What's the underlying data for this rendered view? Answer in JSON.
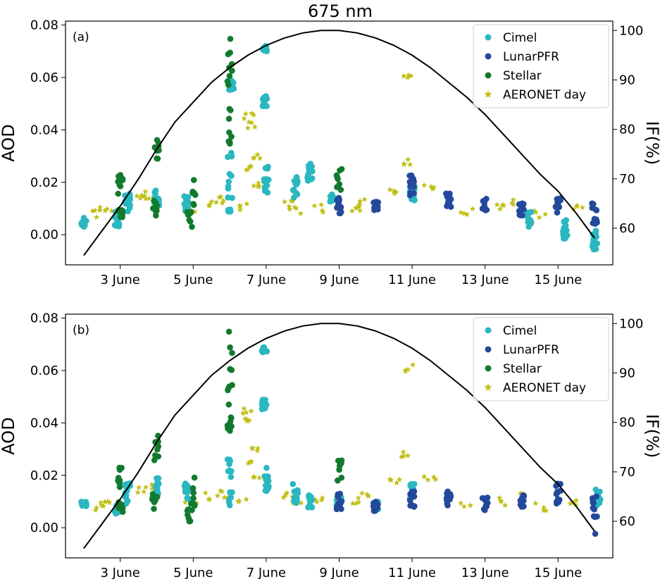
{
  "figure": {
    "title": "675 nm"
  },
  "colors": {
    "cimel": "#2ab7c0",
    "lunar": "#23499a",
    "stellar": "#127a2e",
    "aeronet": "#bfbf14",
    "if_line": "#000000"
  },
  "chart_data": [
    {
      "panel_label": "(a)",
      "type": "scatter",
      "title": "675 nm",
      "ylabel": "AOD",
      "y2label": "IF(%)",
      "ylim": [
        -0.0115,
        0.0815
      ],
      "y2lim": [
        52.6,
        101.9
      ],
      "xlim": [
        1.5,
        16.5
      ],
      "yticks": [
        "0.00",
        "0.02",
        "0.04",
        "0.06",
        "0.08"
      ],
      "y2ticks": [
        "60",
        "70",
        "80",
        "90",
        "100"
      ],
      "xticks": [
        "3 June",
        "5 June",
        "7 June",
        "9 June",
        "11 June",
        "13 June",
        "15 June"
      ],
      "legend": [
        "Cimel",
        "LunarPFR",
        "Stellar",
        "AERONET day"
      ],
      "legend_position": "top-right",
      "if_curve": {
        "x": [
          2.0,
          2.5,
          3.0,
          3.5,
          4.0,
          4.5,
          5.0,
          5.5,
          6.0,
          6.5,
          7.0,
          7.5,
          8.0,
          8.5,
          9.0,
          9.5,
          10.0,
          10.5,
          11.0,
          11.5,
          12.0,
          12.5,
          13.0,
          13.5,
          14.0,
          14.5,
          15.0,
          15.5,
          16.0
        ],
        "y": [
          54.5,
          59.5,
          64.5,
          70.0,
          76.0,
          81.5,
          85.5,
          89.5,
          92.5,
          95.0,
          97.0,
          98.5,
          99.5,
          100.0,
          100.0,
          99.5,
          98.5,
          97.0,
          95.0,
          92.5,
          89.5,
          86.5,
          83.0,
          79.0,
          75.0,
          71.0,
          67.5,
          63.0,
          58.0
        ]
      },
      "cimel": [
        {
          "x": 2.0,
          "y": 0.005,
          "spread": 0.002
        },
        {
          "x": 2.9,
          "y": 0.006,
          "spread": 0.003
        },
        {
          "x": 3.2,
          "y": 0.012,
          "spread": 0.004
        },
        {
          "x": 4.0,
          "y": 0.014,
          "spread": 0.003
        },
        {
          "x": 4.8,
          "y": 0.012,
          "spread": 0.003
        },
        {
          "x": 6.0,
          "y": 0.02,
          "spread": 0.012
        },
        {
          "x": 6.05,
          "y": 0.057,
          "spread": 0.002
        },
        {
          "x": 6.95,
          "y": 0.071,
          "spread": 0.001
        },
        {
          "x": 6.95,
          "y": 0.051,
          "spread": 0.002
        },
        {
          "x": 7.0,
          "y": 0.022,
          "spread": 0.006
        },
        {
          "x": 7.8,
          "y": 0.018,
          "spread": 0.004
        },
        {
          "x": 8.2,
          "y": 0.024,
          "spread": 0.004
        },
        {
          "x": 8.8,
          "y": 0.014,
          "spread": 0.002
        },
        {
          "x": 11.0,
          "y": 0.016,
          "spread": 0.003
        },
        {
          "x": 14.2,
          "y": 0.006,
          "spread": 0.003
        },
        {
          "x": 15.2,
          "y": 0.002,
          "spread": 0.004
        },
        {
          "x": 16.0,
          "y": -0.002,
          "spread": 0.004
        }
      ],
      "lunar": [
        {
          "x": 9.0,
          "y": 0.011,
          "spread": 0.003
        },
        {
          "x": 10.0,
          "y": 0.011,
          "spread": 0.002
        },
        {
          "x": 11.0,
          "y": 0.019,
          "spread": 0.004
        },
        {
          "x": 12.0,
          "y": 0.013,
          "spread": 0.003
        },
        {
          "x": 13.0,
          "y": 0.012,
          "spread": 0.003
        },
        {
          "x": 14.0,
          "y": 0.01,
          "spread": 0.003
        },
        {
          "x": 15.0,
          "y": 0.012,
          "spread": 0.004
        },
        {
          "x": 16.0,
          "y": 0.008,
          "spread": 0.004
        }
      ],
      "stellar": [
        {
          "x": 3.0,
          "y": 0.019,
          "spread": 0.005
        },
        {
          "x": 3.0,
          "y": 0.008,
          "spread": 0.002
        },
        {
          "x": 4.0,
          "y": 0.031,
          "spread": 0.006
        },
        {
          "x": 3.95,
          "y": 0.01,
          "spread": 0.003
        },
        {
          "x": 5.0,
          "y": 0.015,
          "spread": 0.006
        },
        {
          "x": 4.9,
          "y": 0.006,
          "spread": 0.003
        },
        {
          "x": 6.0,
          "y": 0.062,
          "spread": 0.01
        },
        {
          "x": 6.0,
          "y": 0.042,
          "spread": 0.008
        },
        {
          "x": 6.05,
          "y": 0.075,
          "spread": 0.0005
        },
        {
          "x": 9.0,
          "y": 0.021,
          "spread": 0.005
        }
      ],
      "aeronet": [
        {
          "x": 2.4,
          "y": 0.008
        },
        {
          "x": 2.6,
          "y": 0.009
        },
        {
          "x": 3.6,
          "y": 0.014
        },
        {
          "x": 3.8,
          "y": 0.015
        },
        {
          "x": 4.95,
          "y": 0.01
        },
        {
          "x": 5.5,
          "y": 0.012
        },
        {
          "x": 5.8,
          "y": 0.013
        },
        {
          "x": 6.4,
          "y": 0.011
        },
        {
          "x": 6.5,
          "y": 0.025
        },
        {
          "x": 6.5,
          "y": 0.045
        },
        {
          "x": 6.6,
          "y": 0.042
        },
        {
          "x": 6.7,
          "y": 0.03
        },
        {
          "x": 6.8,
          "y": 0.019
        },
        {
          "x": 7.6,
          "y": 0.012
        },
        {
          "x": 7.8,
          "y": 0.009
        },
        {
          "x": 8.4,
          "y": 0.01
        },
        {
          "x": 9.4,
          "y": 0.01
        },
        {
          "x": 9.7,
          "y": 0.012
        },
        {
          "x": 10.5,
          "y": 0.017
        },
        {
          "x": 10.8,
          "y": 0.028
        },
        {
          "x": 10.85,
          "y": 0.061
        },
        {
          "x": 11.5,
          "y": 0.018
        },
        {
          "x": 12.5,
          "y": 0.009
        },
        {
          "x": 13.5,
          "y": 0.01
        },
        {
          "x": 13.9,
          "y": 0.012
        },
        {
          "x": 14.5,
          "y": 0.008
        },
        {
          "x": 15.5,
          "y": 0.01
        }
      ]
    },
    {
      "panel_label": "(b)",
      "type": "scatter",
      "title": "",
      "ylabel": "AOD",
      "y2label": "IF(%)",
      "ylim": [
        -0.0115,
        0.0815
      ],
      "y2lim": [
        52.6,
        101.9
      ],
      "xlim": [
        1.5,
        16.5
      ],
      "yticks": [
        "0.00",
        "0.02",
        "0.04",
        "0.06",
        "0.08"
      ],
      "y2ticks": [
        "60",
        "70",
        "80",
        "90",
        "100"
      ],
      "xticks": [
        "3 June",
        "5 June",
        "7 June",
        "9 June",
        "11 June",
        "13 June",
        "15 June"
      ],
      "legend": [
        "Cimel",
        "LunarPFR",
        "Stellar",
        "AERONET day"
      ],
      "legend_position": "top-right",
      "if_curve": {
        "x": [
          2.0,
          2.5,
          3.0,
          3.5,
          4.0,
          4.5,
          5.0,
          5.5,
          6.0,
          6.5,
          7.0,
          7.5,
          8.0,
          8.5,
          9.0,
          9.5,
          10.0,
          10.5,
          11.0,
          11.5,
          12.0,
          12.5,
          13.0,
          13.5,
          14.0,
          14.5,
          15.0,
          15.5,
          16.0
        ],
        "y": [
          54.5,
          59.5,
          64.5,
          70.0,
          76.0,
          81.5,
          85.5,
          89.5,
          92.5,
          95.0,
          97.0,
          98.5,
          99.5,
          100.0,
          100.0,
          99.5,
          98.5,
          97.0,
          95.0,
          92.5,
          89.5,
          86.5,
          83.0,
          79.0,
          75.0,
          71.0,
          67.5,
          63.0,
          58.0
        ]
      },
      "cimel": [
        {
          "x": 2.0,
          "y": 0.009,
          "spread": 0.001
        },
        {
          "x": 2.9,
          "y": 0.007,
          "spread": 0.002
        },
        {
          "x": 3.2,
          "y": 0.013,
          "spread": 0.004
        },
        {
          "x": 4.0,
          "y": 0.016,
          "spread": 0.003
        },
        {
          "x": 4.8,
          "y": 0.014,
          "spread": 0.003
        },
        {
          "x": 6.0,
          "y": 0.018,
          "spread": 0.01
        },
        {
          "x": 6.95,
          "y": 0.068,
          "spread": 0.001
        },
        {
          "x": 6.95,
          "y": 0.047,
          "spread": 0.002
        },
        {
          "x": 7.0,
          "y": 0.019,
          "spread": 0.005
        },
        {
          "x": 7.8,
          "y": 0.013,
          "spread": 0.004
        },
        {
          "x": 8.2,
          "y": 0.01,
          "spread": 0.003
        },
        {
          "x": 9.0,
          "y": 0.01,
          "spread": 0.002
        },
        {
          "x": 10.0,
          "y": 0.008,
          "spread": 0.002
        },
        {
          "x": 11.0,
          "y": 0.014,
          "spread": 0.003
        },
        {
          "x": 16.1,
          "y": 0.012,
          "spread": 0.004
        }
      ],
      "lunar": [
        {
          "x": 9.0,
          "y": 0.01,
          "spread": 0.003
        },
        {
          "x": 10.0,
          "y": 0.008,
          "spread": 0.002
        },
        {
          "x": 11.0,
          "y": 0.011,
          "spread": 0.003
        },
        {
          "x": 12.0,
          "y": 0.011,
          "spread": 0.003
        },
        {
          "x": 13.0,
          "y": 0.009,
          "spread": 0.003
        },
        {
          "x": 14.0,
          "y": 0.011,
          "spread": 0.003
        },
        {
          "x": 15.0,
          "y": 0.013,
          "spread": 0.004
        },
        {
          "x": 16.0,
          "y": 0.008,
          "spread": 0.004
        },
        {
          "x": 16.0,
          "y": -0.002,
          "spread": 0.0005
        }
      ],
      "stellar": [
        {
          "x": 3.0,
          "y": 0.018,
          "spread": 0.005
        },
        {
          "x": 3.0,
          "y": 0.008,
          "spread": 0.002
        },
        {
          "x": 4.0,
          "y": 0.031,
          "spread": 0.006
        },
        {
          "x": 3.95,
          "y": 0.01,
          "spread": 0.003
        },
        {
          "x": 5.0,
          "y": 0.014,
          "spread": 0.006
        },
        {
          "x": 4.9,
          "y": 0.005,
          "spread": 0.003
        },
        {
          "x": 6.0,
          "y": 0.062,
          "spread": 0.01
        },
        {
          "x": 6.0,
          "y": 0.04,
          "spread": 0.008
        },
        {
          "x": 6.05,
          "y": 0.075,
          "spread": 0.0005
        },
        {
          "x": 9.0,
          "y": 0.022,
          "spread": 0.004
        }
      ],
      "aeronet": [
        {
          "x": 2.4,
          "y": 0.008
        },
        {
          "x": 2.6,
          "y": 0.009
        },
        {
          "x": 3.6,
          "y": 0.014
        },
        {
          "x": 3.8,
          "y": 0.015
        },
        {
          "x": 4.95,
          "y": 0.01
        },
        {
          "x": 5.5,
          "y": 0.012
        },
        {
          "x": 5.8,
          "y": 0.013
        },
        {
          "x": 6.4,
          "y": 0.011
        },
        {
          "x": 6.5,
          "y": 0.025
        },
        {
          "x": 6.5,
          "y": 0.045
        },
        {
          "x": 6.6,
          "y": 0.042
        },
        {
          "x": 6.7,
          "y": 0.03
        },
        {
          "x": 6.8,
          "y": 0.019
        },
        {
          "x": 7.6,
          "y": 0.012
        },
        {
          "x": 7.8,
          "y": 0.009
        },
        {
          "x": 8.4,
          "y": 0.01
        },
        {
          "x": 9.4,
          "y": 0.01
        },
        {
          "x": 9.7,
          "y": 0.012
        },
        {
          "x": 10.5,
          "y": 0.017
        },
        {
          "x": 10.8,
          "y": 0.028
        },
        {
          "x": 10.85,
          "y": 0.061
        },
        {
          "x": 11.5,
          "y": 0.018
        },
        {
          "x": 12.5,
          "y": 0.009
        },
        {
          "x": 13.5,
          "y": 0.01
        },
        {
          "x": 13.9,
          "y": 0.012
        },
        {
          "x": 14.5,
          "y": 0.008
        },
        {
          "x": 15.5,
          "y": 0.01
        }
      ]
    }
  ]
}
